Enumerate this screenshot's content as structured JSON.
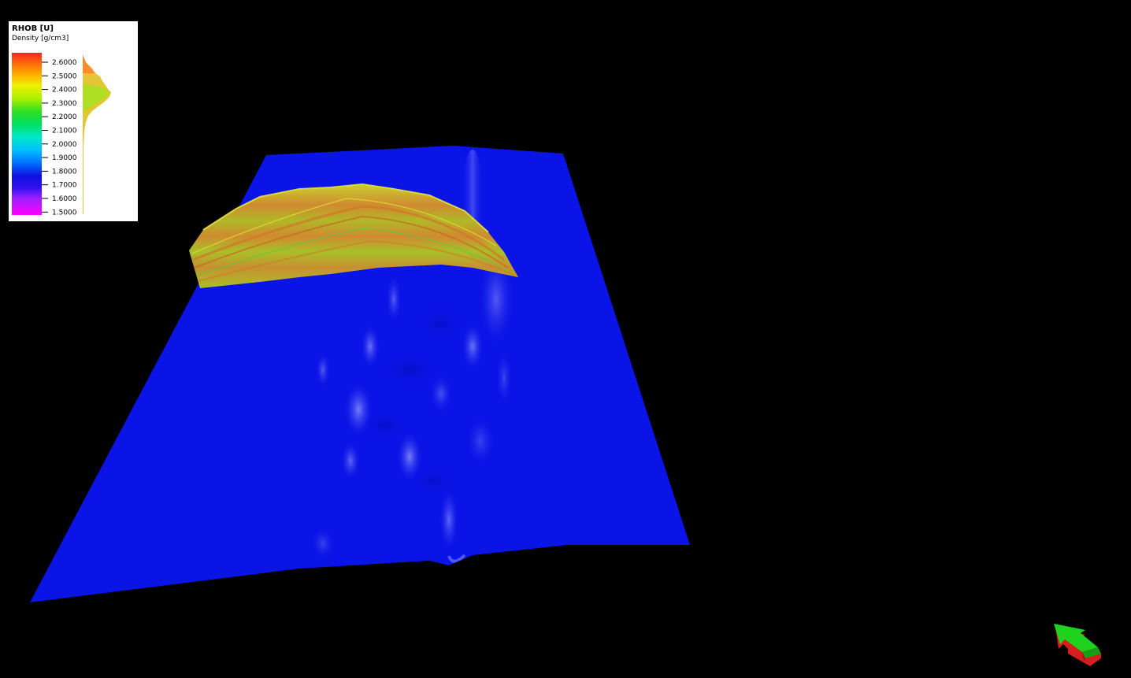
{
  "legend": {
    "title": "RHOB [U]",
    "subtitle": "Density [g/cm3]",
    "ticks": [
      "2.6000",
      "2.5000",
      "2.4000",
      "2.3000",
      "2.2000",
      "2.1000",
      "2.0000",
      "1.9000",
      "1.8000",
      "1.7000",
      "1.6000",
      "1.5000"
    ],
    "colormap": [
      "#ff00ff",
      "#8000ff",
      "#1010e0",
      "#0060ff",
      "#00b0ff",
      "#00e0e0",
      "#00e080",
      "#20e020",
      "#a0f000",
      "#f0f000",
      "#ffb000",
      "#ff5000",
      "#ff2020"
    ]
  },
  "scene": {
    "surface_color": "#0b14e6",
    "section_color": "#b8c020",
    "background_color": "#000000"
  },
  "compass": {
    "arrow_color": "#1ed21e",
    "base_color": "#d61e1e"
  }
}
